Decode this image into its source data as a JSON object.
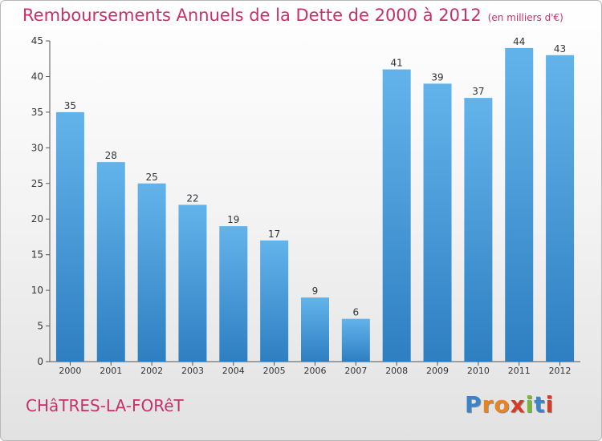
{
  "header": {
    "title": "Remboursements Annuels de la Dette de 2000 à 2012",
    "unit": "(en milliers d'€)"
  },
  "footer": {
    "commune": "CHâTRES-LA-FORêT",
    "logo": {
      "letters": [
        "P",
        "r",
        "o",
        "x",
        "i",
        "t",
        "i"
      ],
      "colors": [
        "#3a84c8",
        "#e8831f",
        "#e8831f",
        "#d83a2a",
        "#78b832",
        "#3a84c8",
        "#d83a2a"
      ]
    }
  },
  "colors": {
    "title": "#c8306a",
    "bar_light": "#63b3eb",
    "bar_dark": "#2e7fc1"
  },
  "chart_data": {
    "type": "bar",
    "categories": [
      "2000",
      "2001",
      "2002",
      "2003",
      "2004",
      "2005",
      "2006",
      "2007",
      "2008",
      "2009",
      "2010",
      "2011",
      "2012"
    ],
    "values": [
      35,
      28,
      25,
      22,
      19,
      17,
      9,
      6,
      41,
      39,
      37,
      44,
      43
    ],
    "title": "Remboursements Annuels de la Dette de 2000 à 2012",
    "subtitle": "(en milliers d'€)",
    "xlabel": "",
    "ylabel": "",
    "ylim": [
      0,
      45
    ],
    "yticks": [
      0,
      5,
      10,
      15,
      20,
      25,
      30,
      35,
      40,
      45
    ],
    "grid": false,
    "data_labels": true
  }
}
